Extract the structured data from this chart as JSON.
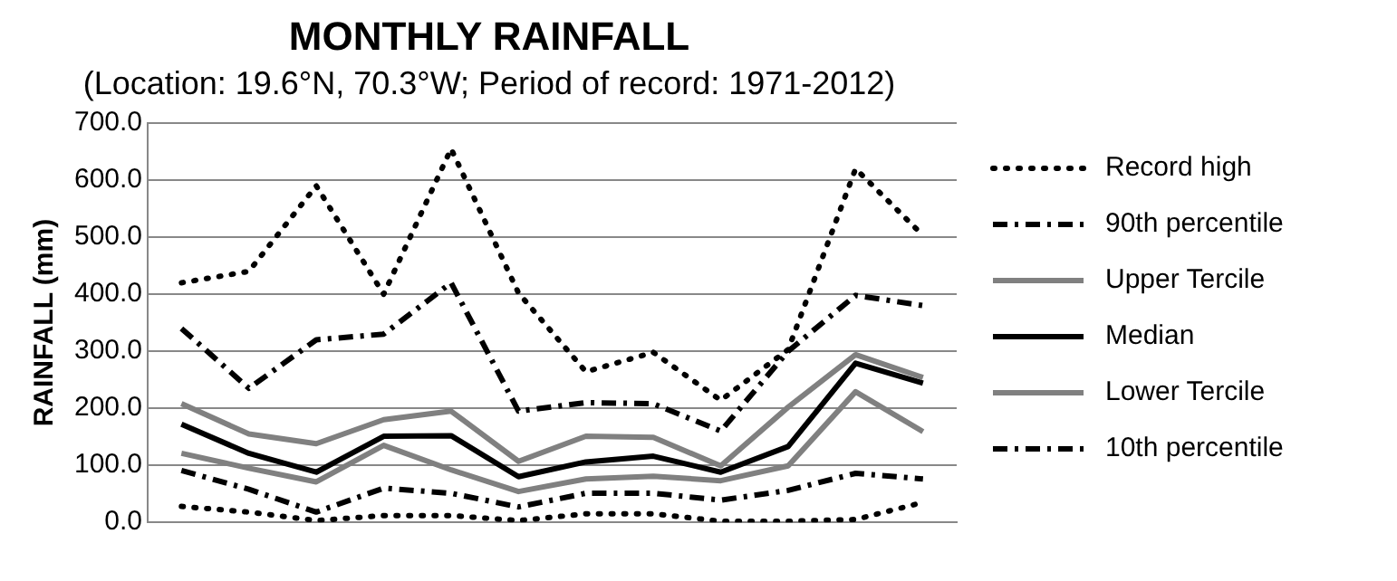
{
  "chart_data": {
    "type": "line",
    "title": "MONTHLY RAINFALL",
    "subtitle": "(Location: 19.6°N, 70.3°W; Period of record: 1971-2012)",
    "ylabel": "RAINFALL (mm)",
    "categories": [
      null,
      null,
      null,
      null,
      null,
      null,
      null,
      null,
      null,
      null,
      null,
      null
    ],
    "ylim": [
      0,
      700
    ],
    "yticks": [
      {
        "value": 0,
        "label": "0.0"
      },
      {
        "value": 100,
        "label": "100.0"
      },
      {
        "value": 200,
        "label": "200.0"
      },
      {
        "value": 300,
        "label": "300.0"
      },
      {
        "value": 400,
        "label": "400.0"
      },
      {
        "value": 500,
        "label": "500.0"
      },
      {
        "value": 600,
        "label": "600.0"
      },
      {
        "value": 700,
        "label": "700.0"
      }
    ],
    "grid": "y",
    "legend": "right",
    "marker": "none",
    "series": [
      {
        "name": "Record high",
        "color": "#000000",
        "line_style": "dotted",
        "values": [
          420,
          440,
          590,
          400,
          655,
          402,
          264,
          298,
          214,
          303,
          620,
          503
        ]
      },
      {
        "name": "90th percentile",
        "color": "#000000",
        "line_style": "dashed",
        "values": [
          340,
          235,
          320,
          330,
          420,
          195,
          210,
          208,
          160,
          300,
          398,
          380
        ]
      },
      {
        "name": "Upper Tercile",
        "color": "#808080",
        "line_style": "solid",
        "values": [
          208,
          155,
          138,
          180,
          195,
          107,
          151,
          149,
          99,
          202,
          294,
          254
        ]
      },
      {
        "name": "Median",
        "color": "#000000",
        "line_style": "solid",
        "values": [
          172,
          121,
          88,
          151,
          152,
          80,
          106,
          116,
          88,
          133,
          279,
          244
        ]
      },
      {
        "name": "Lower Tercile",
        "color": "#808080",
        "line_style": "solid",
        "values": [
          121,
          95,
          71,
          135,
          92,
          54,
          76,
          81,
          73,
          99,
          229,
          159
        ]
      },
      {
        "name": "10th percentile",
        "color": "#000000",
        "line_style": "dashed",
        "values": [
          91,
          58,
          18,
          60,
          51,
          27,
          51,
          51,
          39,
          56,
          86,
          76
        ]
      },
      {
        "color": "#000000",
        "line_style": "dotted",
        "values": [
          28,
          18,
          3,
          12,
          12,
          3,
          15,
          15,
          2,
          2,
          5,
          35
        ]
      }
    ]
  }
}
